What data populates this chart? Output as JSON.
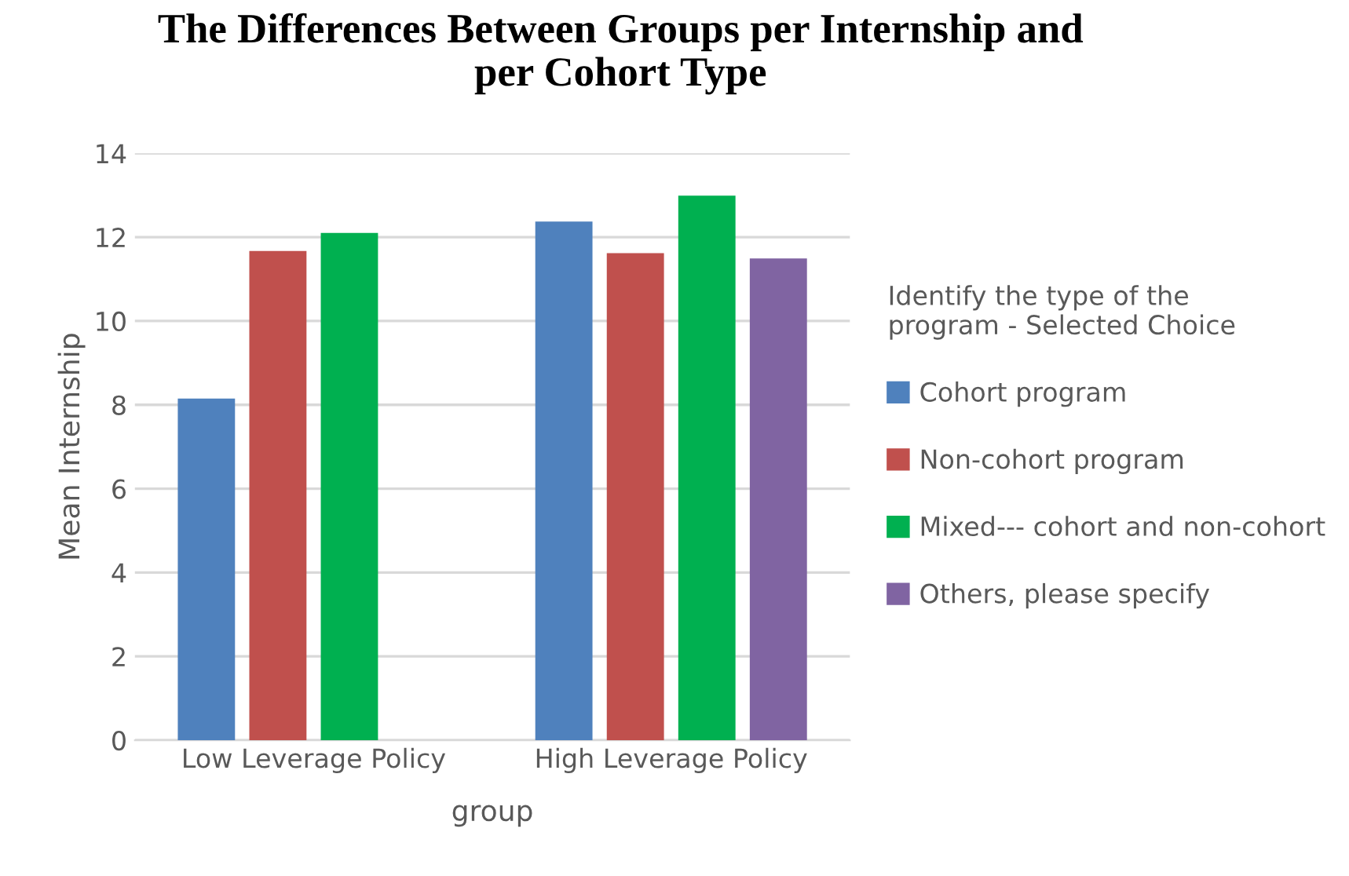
{
  "chart_data": {
    "type": "bar",
    "title": "The Differences Between Groups per Internship and\nper Cohort Type",
    "xlabel": "group",
    "ylabel": "Mean Internship",
    "legend_title": "Identify the type of the\nprogram - Selected Choice",
    "categories": [
      "Low Leverage Policy",
      "High Leverage Policy"
    ],
    "series": [
      {
        "name": "Cohort program",
        "color": "#4f81bd",
        "values": [
          8.15,
          12.37
        ]
      },
      {
        "name": "Non-cohort program",
        "color": "#c0504d",
        "values": [
          11.67,
          11.62
        ]
      },
      {
        "name": "Mixed--- cohort and non-cohort",
        "color": "#00b050",
        "values": [
          12.1,
          12.99
        ]
      },
      {
        "name": "Others, please specify",
        "color": "#8064a2",
        "values": [
          null,
          11.49
        ]
      }
    ],
    "ylim": [
      0,
      14
    ],
    "yticks": [
      0,
      2,
      4,
      6,
      8,
      10,
      12,
      14
    ],
    "grid": "y",
    "legend": "right"
  }
}
